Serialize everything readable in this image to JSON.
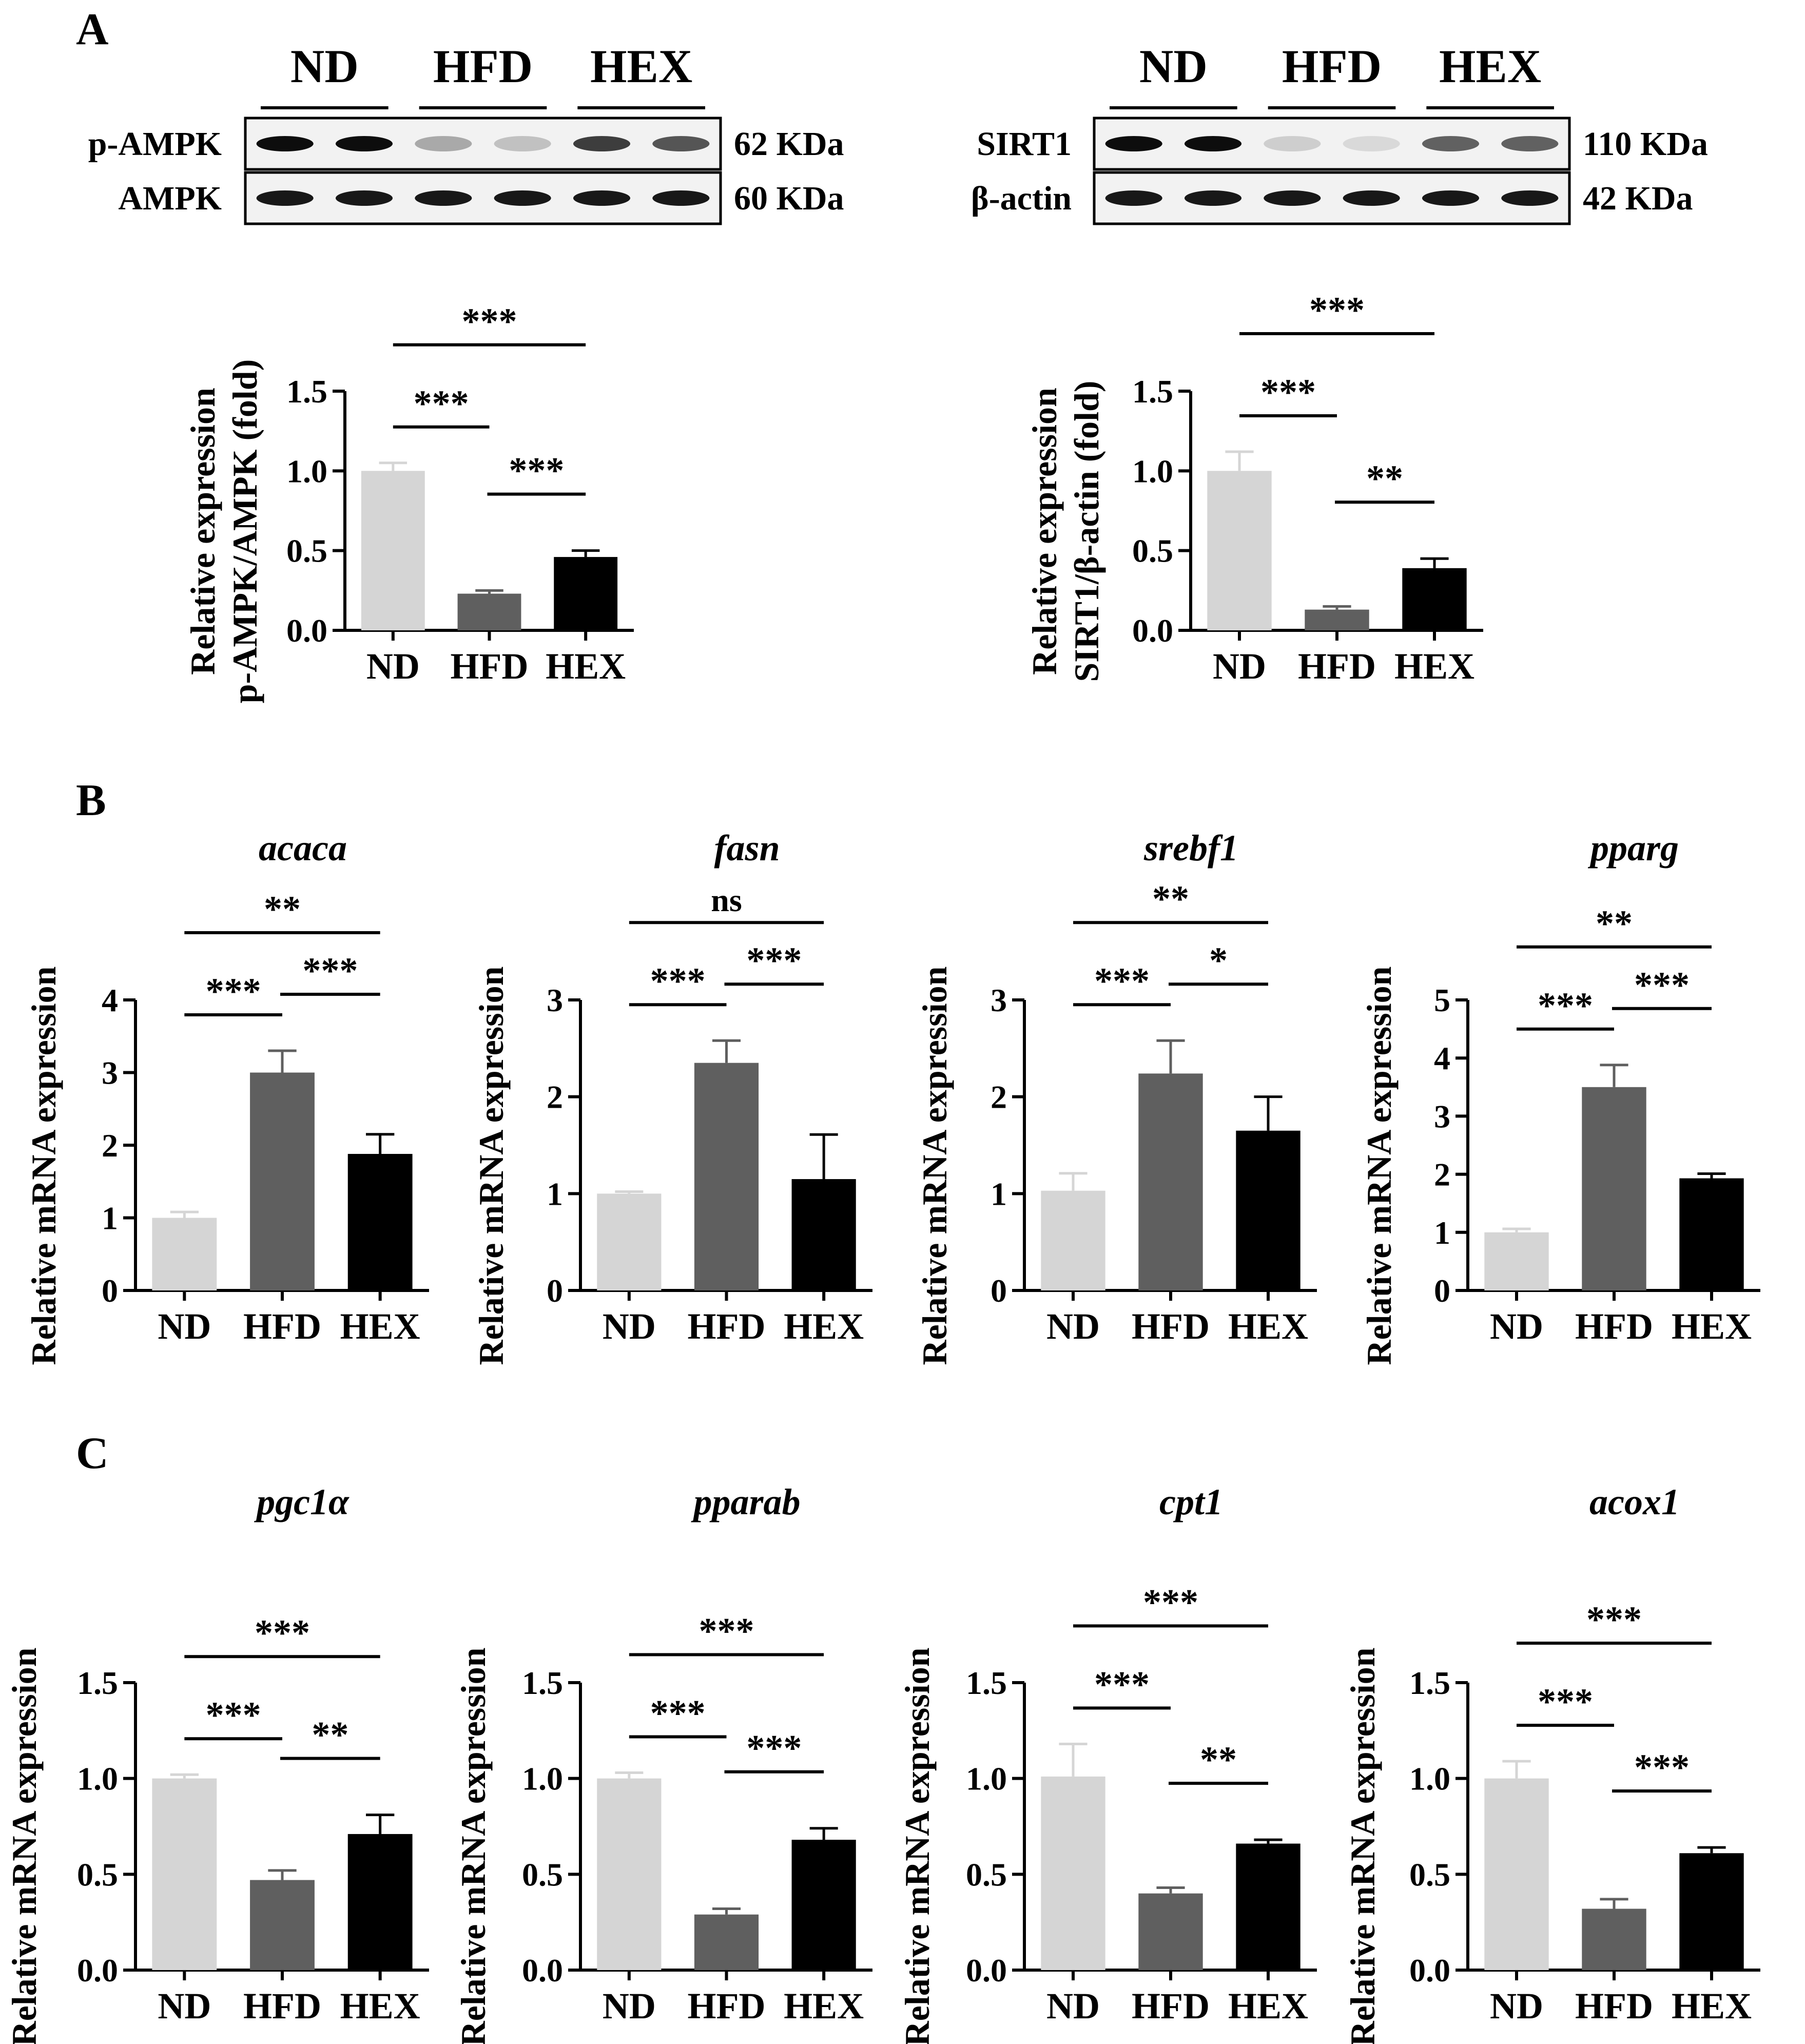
{
  "figure": {
    "panel_labels": [
      "A",
      "B",
      "C"
    ],
    "groups": [
      "ND",
      "HFD",
      "HEX"
    ],
    "colors": {
      "ND": "#d5d5d5",
      "HFD": "#5f5f5f",
      "HEX": "#000000"
    }
  },
  "blots": [
    {
      "headers": [
        "ND",
        "HFD",
        "HEX"
      ],
      "rows": [
        {
          "protein": "p-AMPK",
          "size": "62 KDa",
          "intensity": [
            0.95,
            0.95,
            0.3,
            0.2,
            0.75,
            0.65
          ]
        },
        {
          "protein": "AMPK",
          "size": "60 KDa",
          "intensity": [
            0.9,
            0.9,
            0.9,
            0.9,
            0.9,
            0.9
          ]
        }
      ]
    },
    {
      "headers": [
        "ND",
        "HFD",
        "HEX"
      ],
      "rows": [
        {
          "protein": "SIRT1",
          "size": "110 KDa",
          "intensity": [
            0.95,
            0.95,
            0.15,
            0.1,
            0.6,
            0.6
          ]
        },
        {
          "protein": "β-actin",
          "size": "42 KDa",
          "intensity": [
            0.9,
            0.9,
            0.9,
            0.9,
            0.9,
            0.9
          ]
        }
      ]
    }
  ],
  "chart_data": [
    {
      "type": "bar",
      "panel": "A",
      "title": "",
      "ylabel": [
        "Relative expression",
        "p-AMPK/AMPK (fold)"
      ],
      "categories": [
        "ND",
        "HFD",
        "HEX"
      ],
      "values": [
        1.0,
        0.23,
        0.46
      ],
      "errors": [
        0.05,
        0.02,
        0.04
      ],
      "ylim": [
        0,
        1.5
      ],
      "yticks": [
        "0.0",
        "0.5",
        "1.0",
        "1.5"
      ],
      "significance": [
        {
          "pair": [
            0,
            1
          ],
          "label": "***"
        },
        {
          "pair": [
            1,
            2
          ],
          "label": "***"
        },
        {
          "pair": [
            0,
            2
          ],
          "label": "***"
        }
      ]
    },
    {
      "type": "bar",
      "panel": "A",
      "title": "",
      "ylabel": [
        "Relative expression",
        "SIRT1/β-actin (fold)"
      ],
      "categories": [
        "ND",
        "HFD",
        "HEX"
      ],
      "values": [
        1.0,
        0.13,
        0.39
      ],
      "errors": [
        0.12,
        0.02,
        0.06
      ],
      "ylim": [
        0,
        1.5
      ],
      "yticks": [
        "0.0",
        "0.5",
        "1.0",
        "1.5"
      ],
      "significance": [
        {
          "pair": [
            0,
            1
          ],
          "label": "***"
        },
        {
          "pair": [
            1,
            2
          ],
          "label": "**"
        },
        {
          "pair": [
            0,
            2
          ],
          "label": "***"
        }
      ]
    },
    {
      "type": "bar",
      "panel": "B",
      "title": "acaca",
      "ylabel": [
        "Relative mRNA expression"
      ],
      "categories": [
        "ND",
        "HFD",
        "HEX"
      ],
      "values": [
        1.0,
        3.0,
        1.88
      ],
      "errors": [
        0.08,
        0.3,
        0.27
      ],
      "ylim": [
        0,
        4
      ],
      "yticks": [
        "0",
        "1",
        "2",
        "3",
        "4"
      ],
      "significance": [
        {
          "pair": [
            0,
            1
          ],
          "label": "***"
        },
        {
          "pair": [
            1,
            2
          ],
          "label": "***"
        },
        {
          "pair": [
            0,
            2
          ],
          "label": "**"
        }
      ]
    },
    {
      "type": "bar",
      "panel": "B",
      "title": "fasn",
      "ylabel": [
        "Relative mRNA expression"
      ],
      "categories": [
        "ND",
        "HFD",
        "HEX"
      ],
      "values": [
        1.0,
        2.35,
        1.15
      ],
      "errors": [
        0.02,
        0.23,
        0.46
      ],
      "ylim": [
        0,
        3
      ],
      "yticks": [
        "0",
        "1",
        "2",
        "3"
      ],
      "significance": [
        {
          "pair": [
            0,
            1
          ],
          "label": "***"
        },
        {
          "pair": [
            1,
            2
          ],
          "label": "***"
        },
        {
          "pair": [
            0,
            2
          ],
          "label": "ns"
        }
      ]
    },
    {
      "type": "bar",
      "panel": "B",
      "title": "srebf1",
      "ylabel": [
        "Relative mRNA expression"
      ],
      "categories": [
        "ND",
        "HFD",
        "HEX"
      ],
      "values": [
        1.03,
        2.24,
        1.65
      ],
      "errors": [
        0.18,
        0.34,
        0.35
      ],
      "ylim": [
        0,
        3
      ],
      "yticks": [
        "0",
        "1",
        "2",
        "3"
      ],
      "significance": [
        {
          "pair": [
            0,
            1
          ],
          "label": "***"
        },
        {
          "pair": [
            1,
            2
          ],
          "label": "*"
        },
        {
          "pair": [
            0,
            2
          ],
          "label": "**"
        }
      ]
    },
    {
      "type": "bar",
      "panel": "B",
      "title": "pparg",
      "ylabel": [
        "Relative mRNA expression"
      ],
      "categories": [
        "ND",
        "HFD",
        "HEX"
      ],
      "values": [
        1.0,
        3.5,
        1.93
      ],
      "errors": [
        0.06,
        0.38,
        0.08
      ],
      "ylim": [
        0,
        5
      ],
      "yticks": [
        "0",
        "1",
        "2",
        "3",
        "4",
        "5"
      ],
      "significance": [
        {
          "pair": [
            0,
            1
          ],
          "label": "***"
        },
        {
          "pair": [
            1,
            2
          ],
          "label": "***"
        },
        {
          "pair": [
            0,
            2
          ],
          "label": "**"
        }
      ]
    },
    {
      "type": "bar",
      "panel": "C",
      "title": "pgc1α",
      "ylabel": [
        "Relative mRNA expression"
      ],
      "categories": [
        "ND",
        "HFD",
        "HEX"
      ],
      "values": [
        1.0,
        0.47,
        0.71
      ],
      "errors": [
        0.02,
        0.05,
        0.1
      ],
      "ylim": [
        0,
        1.5
      ],
      "yticks": [
        "0.0",
        "0.5",
        "1.0",
        "1.5"
      ],
      "significance": [
        {
          "pair": [
            0,
            1
          ],
          "label": "***"
        },
        {
          "pair": [
            1,
            2
          ],
          "label": "**"
        },
        {
          "pair": [
            0,
            2
          ],
          "label": "***"
        }
      ]
    },
    {
      "type": "bar",
      "panel": "C",
      "title": "pparab",
      "ylabel": [
        "Relative mRNA expression"
      ],
      "categories": [
        "ND",
        "HFD",
        "HEX"
      ],
      "values": [
        1.0,
        0.29,
        0.68
      ],
      "errors": [
        0.03,
        0.03,
        0.06
      ],
      "ylim": [
        0,
        1.5
      ],
      "yticks": [
        "0.0",
        "0.5",
        "1.0",
        "1.5"
      ],
      "significance": [
        {
          "pair": [
            0,
            1
          ],
          "label": "***"
        },
        {
          "pair": [
            1,
            2
          ],
          "label": "***"
        },
        {
          "pair": [
            0,
            2
          ],
          "label": "***"
        }
      ]
    },
    {
      "type": "bar",
      "panel": "C",
      "title": "cpt1",
      "ylabel": [
        "Relative mRNA expression"
      ],
      "categories": [
        "ND",
        "HFD",
        "HEX"
      ],
      "values": [
        1.01,
        0.4,
        0.66
      ],
      "errors": [
        0.17,
        0.03,
        0.02
      ],
      "ylim": [
        0,
        1.5
      ],
      "yticks": [
        "0.0",
        "0.5",
        "1.0",
        "1.5"
      ],
      "significance": [
        {
          "pair": [
            0,
            1
          ],
          "label": "***"
        },
        {
          "pair": [
            1,
            2
          ],
          "label": "**"
        },
        {
          "pair": [
            0,
            2
          ],
          "label": "***"
        }
      ]
    },
    {
      "type": "bar",
      "panel": "C",
      "title": "acox1",
      "ylabel": [
        "Relative mRNA expression"
      ],
      "categories": [
        "ND",
        "HFD",
        "HEX"
      ],
      "values": [
        1.0,
        0.32,
        0.61
      ],
      "errors": [
        0.09,
        0.05,
        0.03
      ],
      "ylim": [
        0,
        1.5
      ],
      "yticks": [
        "0.0",
        "0.5",
        "1.0",
        "1.5"
      ],
      "significance": [
        {
          "pair": [
            0,
            1
          ],
          "label": "***"
        },
        {
          "pair": [
            1,
            2
          ],
          "label": "***"
        },
        {
          "pair": [
            0,
            2
          ],
          "label": "***"
        }
      ]
    }
  ]
}
